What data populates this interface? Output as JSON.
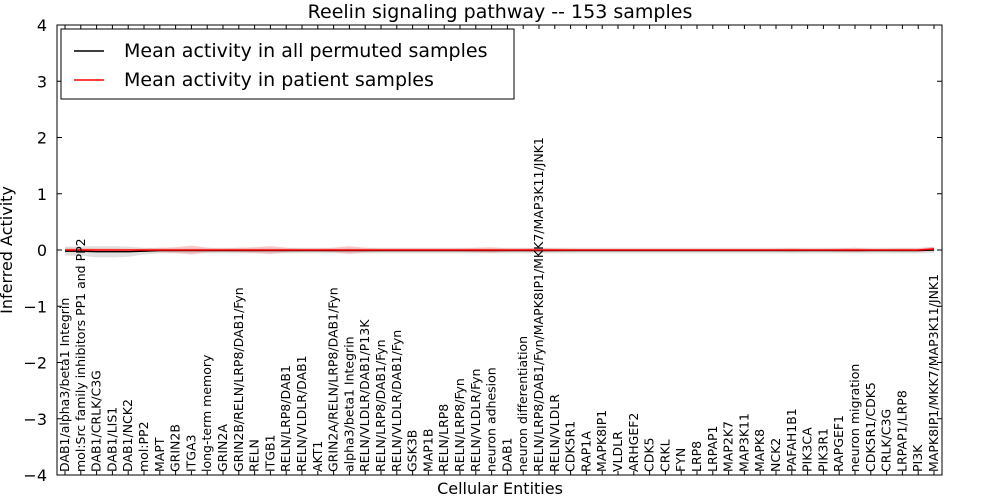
{
  "chart_data": {
    "type": "line",
    "title": "Reelin signaling pathway -- 153 samples",
    "xlabel": "Cellular Entities",
    "ylabel": "Inferred Activity",
    "ylim": [
      -4,
      4
    ],
    "yticks": [
      -4,
      -3,
      -2,
      -1,
      0,
      1,
      2,
      3,
      4
    ],
    "ytick_labels": [
      "−4",
      "−3",
      "−2",
      "−1",
      "0",
      "1",
      "2",
      "3",
      "4"
    ],
    "legend_position": "top-left",
    "categories": [
      "DAB1/alpha3/beta1 Integrin",
      "mol:Src family inhibitors PP1 and PP2",
      "DAB1/CRLK/C3G",
      "DAB1/LIS1",
      "DAB1/NCK2",
      "mol:PP2",
      "MAPT",
      "GRIN2B",
      "ITGA3",
      "long-term memory",
      "GRIN2A",
      "GRIN2B/RELN/LRP8/DAB1/Fyn",
      "RELN",
      "ITGB1",
      "RELN/LRP8/DAB1",
      "RELN/VLDLR/DAB1",
      "AKT1",
      "GRIN2A/RELN/LRP8/DAB1/Fyn",
      "alpha3/beta1 Integrin",
      "RELN/VLDLR/DAB1/P13K",
      "RELN/LRP8/DAB1/Fyn",
      "RELN/VLDLR/DAB1/Fyn",
      "GSK3B",
      "MAP1B",
      "RELN/LRP8",
      "RELN/LRP8/Fyn",
      "RELN/VLDLR/Fyn",
      "neuron adhesion",
      "DAB1",
      "neuron differentiation",
      "RELN/LRP8/DAB1/Fyn/MAPK8IP1/MKK7/MAP3K11/JNK1",
      "RELN/VLDLR",
      "CDK5R1",
      "RAP1A",
      "MAPK8IP1",
      "VLDLR",
      "ARHGEF2",
      "CDK5",
      "CRKL",
      "FYN",
      "LRP8",
      "LRPAP1",
      "MAP2K7",
      "MAP3K11",
      "MAPK8",
      "NCK2",
      "PAFAH1B1",
      "PIK3CA",
      "PIK3R1",
      "RAPGEF1",
      "neuron migration",
      "CDK5R1/CDK5",
      "CRLK/C3G",
      "LRPAP1/LRP8",
      "PI3K",
      "MAPK8IP1/MKK7/MAP3K11/JNK1"
    ],
    "series": [
      {
        "name": "Mean activity in all permuted samples",
        "color": "#000000",
        "values": [
          -0.02,
          -0.02,
          -0.03,
          -0.03,
          -0.03,
          -0.02,
          -0.01,
          -0.01,
          -0.01,
          -0.01,
          -0.01,
          -0.01,
          -0.01,
          -0.01,
          -0.01,
          -0.01,
          -0.01,
          -0.01,
          -0.01,
          -0.01,
          -0.01,
          -0.01,
          -0.01,
          -0.01,
          -0.01,
          -0.01,
          -0.01,
          -0.01,
          -0.01,
          -0.01,
          -0.01,
          -0.01,
          -0.01,
          -0.01,
          -0.01,
          -0.01,
          -0.01,
          -0.01,
          -0.01,
          -0.01,
          -0.01,
          -0.01,
          -0.01,
          -0.01,
          -0.01,
          -0.01,
          -0.01,
          -0.01,
          -0.01,
          -0.01,
          -0.01,
          -0.01,
          -0.01,
          -0.01,
          -0.01,
          0.0
        ],
        "band": [
          0.08,
          0.08,
          0.1,
          0.1,
          0.09,
          0.06,
          0.05,
          0.05,
          0.05,
          0.05,
          0.05,
          0.05,
          0.05,
          0.05,
          0.05,
          0.05,
          0.05,
          0.05,
          0.05,
          0.05,
          0.05,
          0.05,
          0.05,
          0.05,
          0.05,
          0.05,
          0.05,
          0.05,
          0.05,
          0.05,
          0.05,
          0.05,
          0.05,
          0.05,
          0.05,
          0.05,
          0.05,
          0.05,
          0.05,
          0.05,
          0.05,
          0.05,
          0.05,
          0.05,
          0.05,
          0.05,
          0.05,
          0.05,
          0.05,
          0.05,
          0.05,
          0.05,
          0.05,
          0.05,
          0.05,
          0.05
        ],
        "band_color": "#bbbbbb"
      },
      {
        "name": "Mean activity in patient samples",
        "color": "#ff0000",
        "values": [
          0.0,
          0.0,
          0.0,
          0.0,
          0.0,
          0.0,
          0.0,
          0.0,
          0.0,
          0.0,
          0.0,
          0.0,
          0.0,
          0.0,
          0.0,
          0.0,
          0.0,
          0.0,
          0.0,
          0.0,
          0.0,
          0.0,
          0.0,
          0.0,
          0.0,
          0.0,
          0.0,
          0.0,
          0.0,
          0.0,
          0.0,
          0.0,
          0.0,
          0.0,
          0.0,
          0.0,
          0.0,
          0.0,
          0.0,
          0.0,
          0.0,
          0.0,
          0.0,
          0.0,
          0.0,
          0.0,
          0.0,
          0.0,
          0.0,
          0.0,
          0.0,
          0.0,
          0.0,
          0.0,
          0.0,
          0.02
        ],
        "band": [
          0.04,
          0.04,
          0.03,
          0.03,
          0.02,
          0.03,
          0.04,
          0.05,
          0.08,
          0.04,
          0.03,
          0.04,
          0.05,
          0.07,
          0.04,
          0.03,
          0.03,
          0.04,
          0.07,
          0.04,
          0.03,
          0.03,
          0.03,
          0.03,
          0.03,
          0.03,
          0.04,
          0.05,
          0.03,
          0.03,
          0.04,
          0.03,
          0.02,
          0.02,
          0.02,
          0.02,
          0.02,
          0.02,
          0.02,
          0.02,
          0.02,
          0.02,
          0.02,
          0.02,
          0.02,
          0.02,
          0.03,
          0.02,
          0.02,
          0.03,
          0.04,
          0.02,
          0.02,
          0.03,
          0.03,
          0.04
        ],
        "band_color": "#f4a0a0"
      }
    ]
  }
}
